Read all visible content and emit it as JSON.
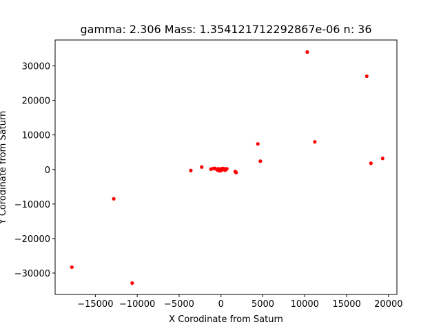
{
  "chart_data": {
    "type": "scatter",
    "title": "gamma: 2.306 Mass: 1.354121712292867e-06 n: 36",
    "xlabel": "X Corodinate from Saturn",
    "ylabel": "Y Corodinate from Saturn",
    "xlim": [
      -19800,
      21000
    ],
    "ylim": [
      -36200,
      37500
    ],
    "x_ticks": [
      -15000,
      -10000,
      -5000,
      0,
      5000,
      10000,
      15000,
      20000
    ],
    "x_tick_labels": [
      "−15000",
      "−10000",
      "−5000",
      "0",
      "5000",
      "10000",
      "15000",
      "20000"
    ],
    "y_ticks": [
      -30000,
      -20000,
      -10000,
      0,
      10000,
      20000,
      30000
    ],
    "y_tick_labels": [
      "−30000",
      "−20000",
      "−10000",
      "0",
      "10000",
      "20000",
      "30000"
    ],
    "grid": false,
    "marker_color": "#ff0000",
    "x": [
      10300,
      17400,
      4400,
      11200,
      4700,
      17900,
      19300,
      -3600,
      -2300,
      -1200,
      -900,
      -400,
      -300,
      -200,
      -100,
      0,
      100,
      200,
      300,
      400,
      500,
      700,
      1700,
      1800,
      -12800,
      -17800,
      -10600,
      -500,
      -200,
      0,
      300,
      -300,
      100,
      600,
      -700,
      1750
    ],
    "y": [
      34000,
      27000,
      7400,
      8000,
      2400,
      1800,
      3200,
      -300,
      700,
      100,
      300,
      -200,
      200,
      -400,
      0,
      100,
      -100,
      300,
      0,
      200,
      -200,
      200,
      -600,
      -900,
      -8500,
      -28300,
      -32900,
      0,
      100,
      -300,
      100,
      -100,
      200,
      0,
      300,
      -700
    ]
  }
}
